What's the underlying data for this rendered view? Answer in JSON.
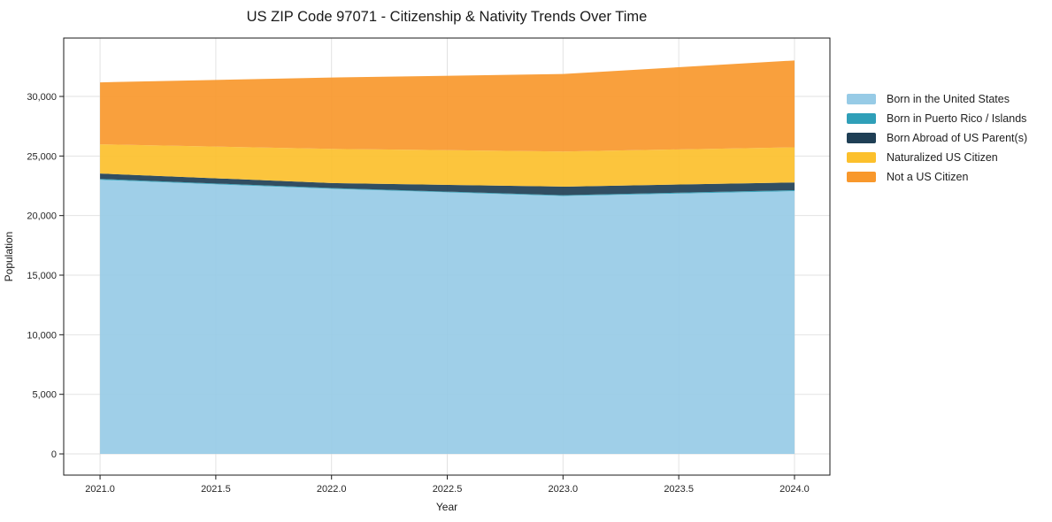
{
  "title": "US ZIP Code 97071 - Citizenship & Nativity Trends Over Time",
  "chart_data": {
    "type": "area",
    "stacked": true,
    "title": "US ZIP Code 97071 - Citizenship & Nativity Trends Over Time",
    "xlabel": "Year",
    "ylabel": "Population",
    "x": [
      2021,
      2022,
      2023,
      2024
    ],
    "series": [
      {
        "name": "Born in the United States",
        "color": "#97cbe6",
        "values": [
          23000,
          22250,
          21650,
          22050
        ]
      },
      {
        "name": "Born in Puerto Rico / Islands",
        "color": "#2f9fb8",
        "values": [
          80,
          60,
          60,
          80
        ]
      },
      {
        "name": "Born Abroad of US Parent(s)",
        "color": "#1f3f55",
        "values": [
          450,
          420,
          720,
          650
        ]
      },
      {
        "name": "Naturalized US Citizen",
        "color": "#fcc02c",
        "values": [
          2450,
          2870,
          2950,
          2950
        ]
      },
      {
        "name": "Not a US Citizen",
        "color": "#f8982c",
        "values": [
          5200,
          5990,
          6500,
          7290
        ]
      }
    ],
    "totals": [
      31180,
      31590,
      31880,
      33020
    ],
    "xlim": [
      2020.843,
      2024.153
    ],
    "ylim": [
      -1780,
      34900
    ],
    "x_ticks": [
      2021.0,
      2021.5,
      2022.0,
      2022.5,
      2023.0,
      2023.5,
      2024.0
    ],
    "x_tick_labels": [
      "2021.0",
      "2021.5",
      "2022.0",
      "2022.5",
      "2023.0",
      "2023.5",
      "2024.0"
    ],
    "y_ticks": [
      0,
      5000,
      10000,
      15000,
      20000,
      25000,
      30000
    ],
    "y_tick_labels": [
      "0",
      "5,000",
      "10,000",
      "15,000",
      "20,000",
      "25,000",
      "30,000"
    ],
    "grid": true,
    "grid_color": "#d9d9d9",
    "legend_position": "right-outside",
    "fill_opacity": 0.92
  }
}
